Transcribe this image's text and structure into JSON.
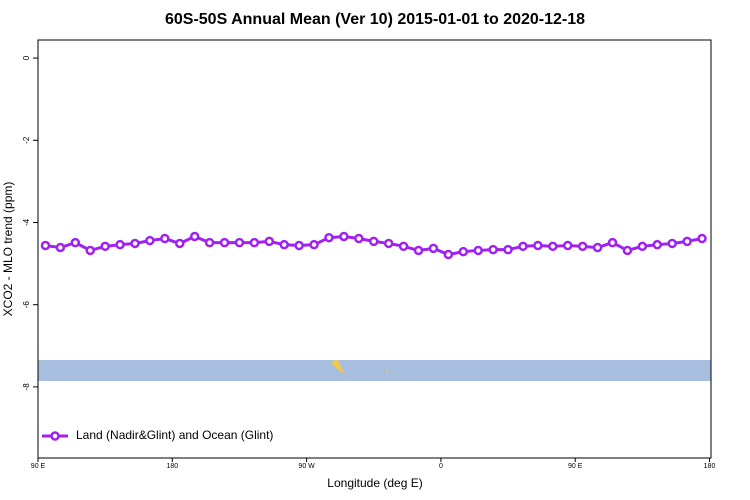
{
  "chart_data": {
    "type": "line",
    "title": "60S-50S Annual Mean (Ver 10)   2015-01-01 to 2020-12-18",
    "x_label": "Longitude (deg E)",
    "y_label": "XCO2 - MLO trend (ppm)",
    "x": [
      95,
      105,
      115,
      125,
      135,
      145,
      155,
      165,
      175,
      185,
      195,
      205,
      215,
      225,
      235,
      245,
      255,
      265,
      275,
      285,
      295,
      305,
      315,
      325,
      335,
      345,
      355,
      365,
      375,
      385,
      395,
      405,
      415,
      425,
      435,
      445,
      455,
      465,
      475,
      485,
      495,
      505,
      515,
      525,
      535
    ],
    "series": [
      {
        "name": "Land (Nadir&Glint) and Ocean (Glint)",
        "color": "#a020f0",
        "values": [
          -4.56,
          -4.61,
          -4.49,
          -4.68,
          -4.58,
          -4.54,
          -4.51,
          -4.44,
          -4.39,
          -4.51,
          -4.34,
          -4.49,
          -4.49,
          -4.49,
          -4.49,
          -4.46,
          -4.54,
          -4.56,
          -4.54,
          -4.37,
          -4.34,
          -4.39,
          -4.46,
          -4.51,
          -4.58,
          -4.68,
          -4.63,
          -4.78,
          -4.71,
          -4.68,
          -4.66,
          -4.66,
          -4.58,
          -4.56,
          -4.58,
          -4.56,
          -4.58,
          -4.61,
          -4.49,
          -4.68,
          -4.58,
          -4.54,
          -4.51,
          -4.46,
          -4.39
        ]
      }
    ],
    "xlim": [
      90,
      541
    ],
    "xticks": [
      {
        "value": 90,
        "label": "90 E"
      },
      {
        "value": 180,
        "label": "180"
      },
      {
        "value": 270,
        "label": "90 W"
      },
      {
        "value": 360,
        "label": "0"
      },
      {
        "value": 450,
        "label": "90 E"
      },
      {
        "value": 540,
        "label": "180"
      }
    ],
    "ylim": [
      -9.73,
      0.44
    ],
    "yticks": [
      0,
      -2,
      -4,
      -6,
      -8
    ],
    "legend": "bottom-left"
  }
}
